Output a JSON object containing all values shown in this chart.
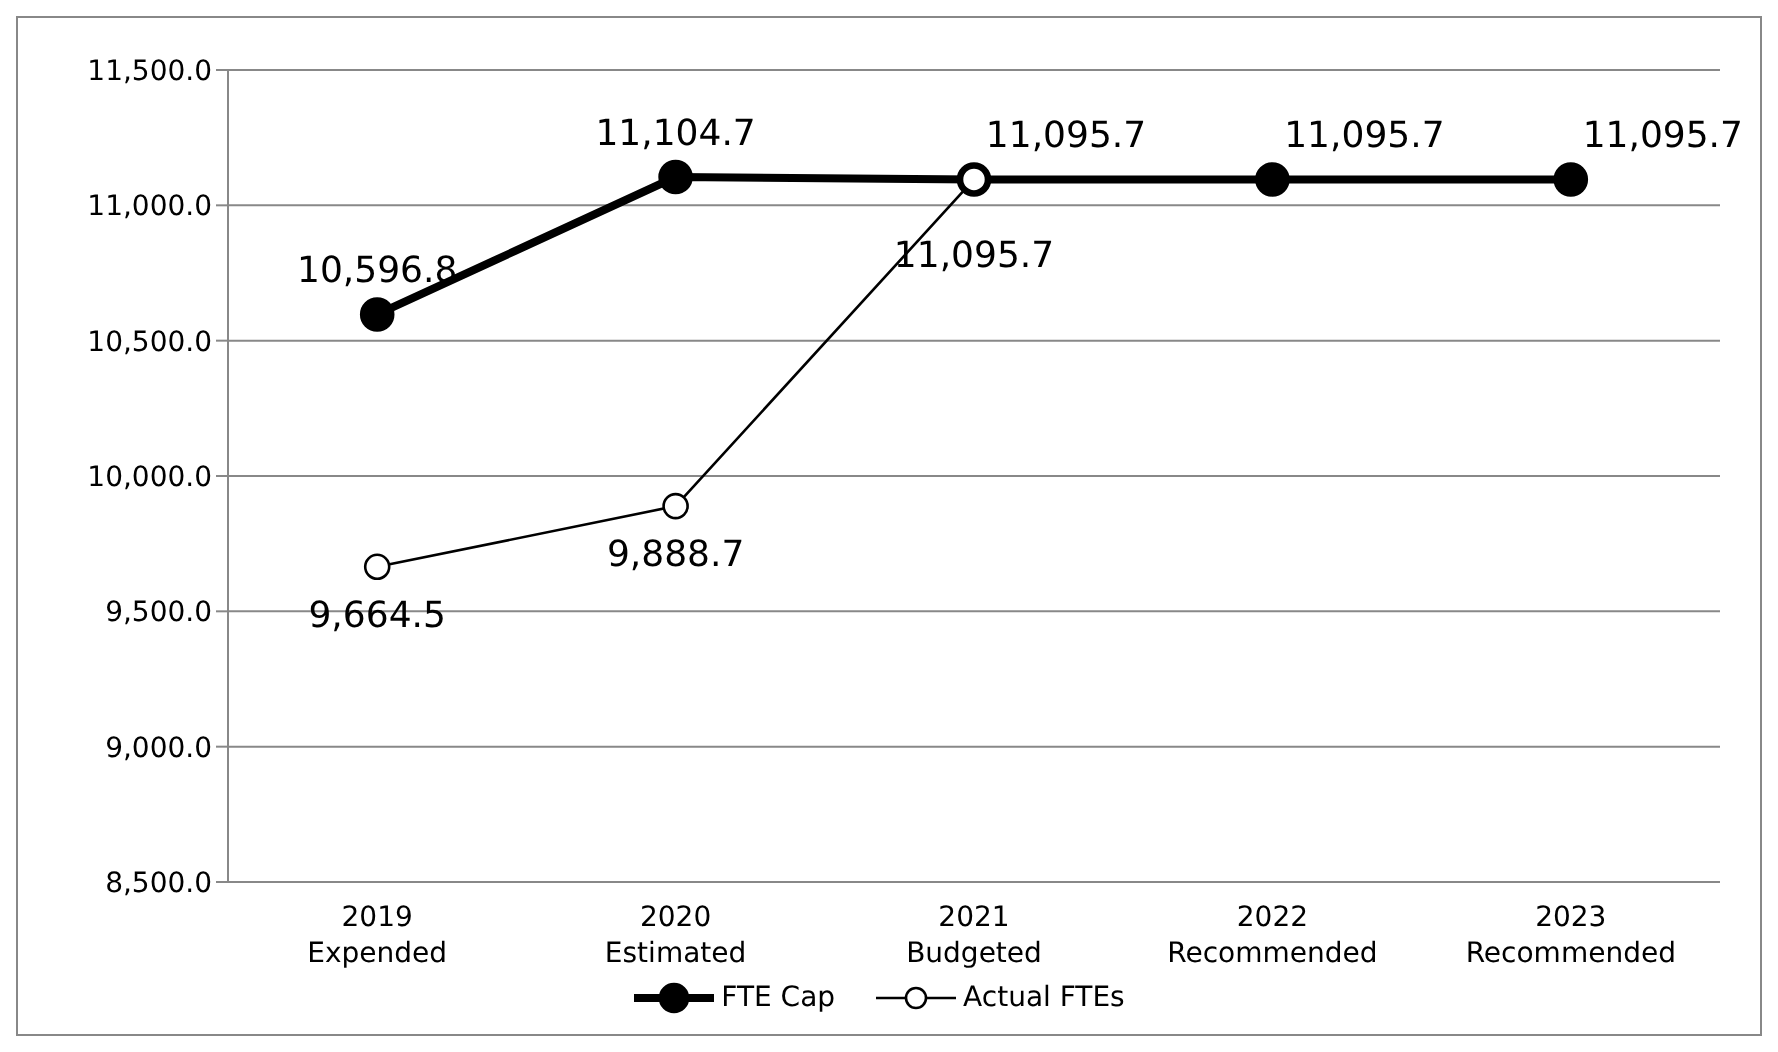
{
  "chart_data": {
    "type": "line",
    "categories": [
      "2019\nExpended",
      "2020\nEstimated",
      "2021\nBudgeted",
      "2022\nRecommended",
      "2023\nRecommended"
    ],
    "series": [
      {
        "name": "FTE Cap",
        "color": "#000000",
        "values": [
          10596.8,
          11104.7,
          11095.7,
          11095.7,
          11095.7
        ],
        "value_labels": [
          "10,596.8",
          "11,104.7",
          "11,095.7",
          "11,095.7",
          "11,095.7"
        ]
      },
      {
        "name": "Actual FTEs",
        "color": "#000000",
        "values": [
          9664.5,
          9888.7,
          11095.7,
          null,
          null
        ],
        "value_labels": [
          "9,664.5",
          "9,888.7",
          "11,095.7",
          null,
          null
        ]
      }
    ],
    "ylim": [
      8500,
      11500
    ],
    "yticks": [
      {
        "value": 8500,
        "label": "8,500.0"
      },
      {
        "value": 9000,
        "label": "9,000.0"
      },
      {
        "value": 9500,
        "label": "9,500.0"
      },
      {
        "value": 10000,
        "label": "10,000.0"
      },
      {
        "value": 10500,
        "label": "10,500.0"
      },
      {
        "value": 11000,
        "label": "11,000.0"
      },
      {
        "value": 11500,
        "label": "11,500.0"
      }
    ],
    "grid": "y",
    "legend": "bottom",
    "marker": "circle",
    "line_style": "solid"
  }
}
